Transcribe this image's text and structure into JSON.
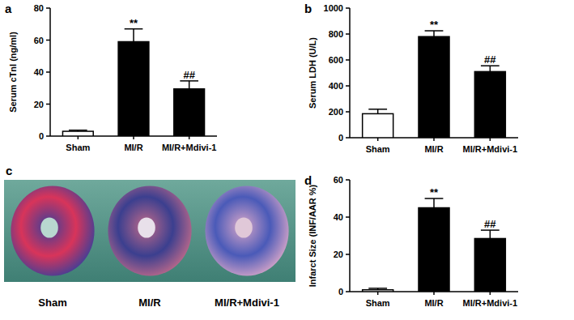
{
  "chart_data": [
    {
      "type": "bar",
      "panel": "a",
      "y_label": "Serum cTnI (ng/ml)",
      "categories": [
        "Sham",
        "MI/R",
        "MI/R+Mdivi-1"
      ],
      "values": [
        3,
        59,
        29.5
      ],
      "errors": [
        0.7,
        8,
        5
      ],
      "annotations": [
        null,
        "**",
        "##"
      ],
      "colors": [
        "#ffffff",
        "#000000",
        "#000000"
      ],
      "ylim": [
        0,
        80
      ],
      "yticks": [
        0,
        20,
        40,
        60,
        80
      ]
    },
    {
      "type": "bar",
      "panel": "b",
      "y_label": "Serum LDH (U/L)",
      "categories": [
        "Sham",
        "MI/R",
        "MI/R+Mdivi-1"
      ],
      "values": [
        185,
        780,
        510
      ],
      "errors": [
        35,
        45,
        45
      ],
      "annotations": [
        null,
        "**",
        "##"
      ],
      "colors": [
        "#ffffff",
        "#000000",
        "#000000"
      ],
      "ylim": [
        0,
        1000
      ],
      "yticks": [
        0,
        200,
        400,
        600,
        800,
        1000
      ]
    },
    {
      "type": "bar",
      "panel": "d",
      "y_label": "Infarct Size (INF/AAR %)",
      "categories": [
        "Sham",
        "MI/R",
        "MI/R+Mdivi-1"
      ],
      "values": [
        1,
        45,
        28.5
      ],
      "errors": [
        0.8,
        5,
        4.5
      ],
      "annotations": [
        null,
        "**",
        "##"
      ],
      "colors": [
        "#ffffff",
        "#000000",
        "#000000"
      ],
      "ylim": [
        0,
        60
      ],
      "yticks": [
        0,
        20,
        40,
        60
      ]
    }
  ],
  "image_panel": {
    "panel": "c",
    "captions": [
      "Sham",
      "MI/R",
      "MI/R+Mdivi-1"
    ]
  }
}
